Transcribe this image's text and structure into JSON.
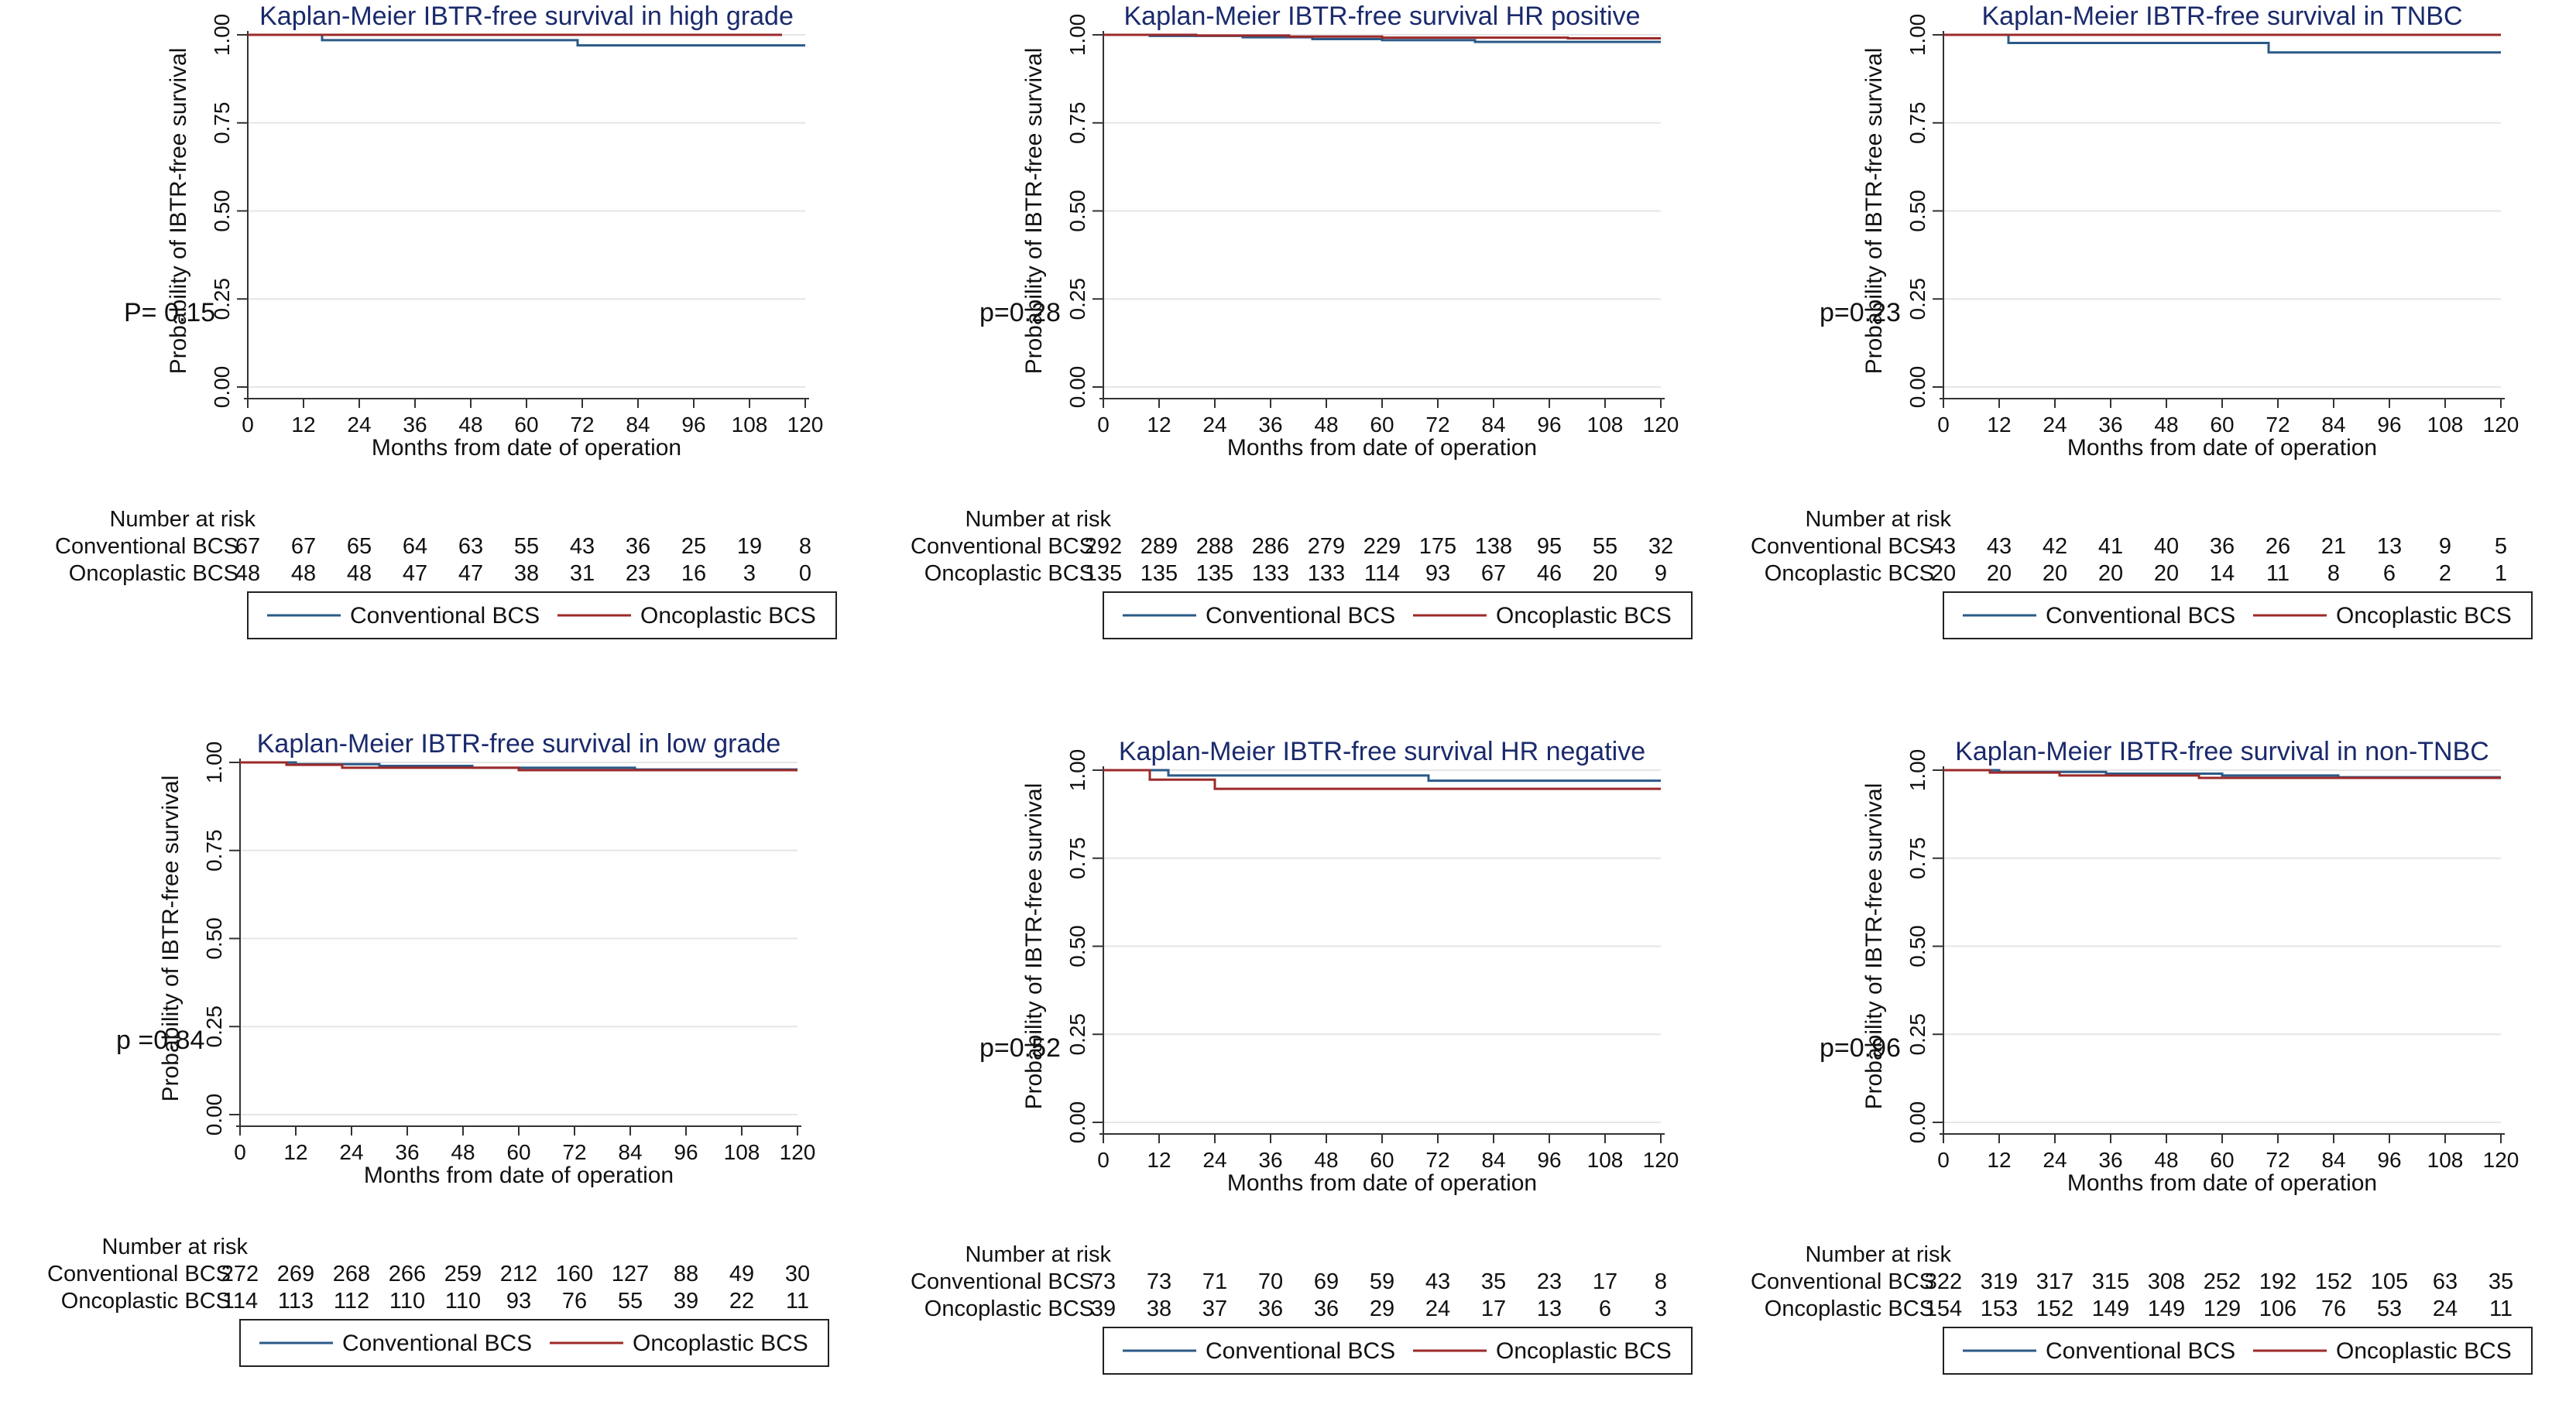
{
  "colors": {
    "conventional": "#2b5a87",
    "oncoplastic": "#9c2a2a",
    "grid": "#e6e6e6",
    "axis": "#333333",
    "title": "#1a2a6c"
  },
  "common": {
    "ylabel": "Probability of IBTR-free survival",
    "xlabel": "Months from date of operation",
    "risk_header": "Number at risk",
    "legend_conventional": "Conventional BCS",
    "legend_oncoplastic": "Oncoplastic BCS",
    "xticks": [
      "0",
      "12",
      "24",
      "36",
      "48",
      "60",
      "72",
      "84",
      "96",
      "108",
      "120"
    ],
    "yticks": [
      "0.00",
      "0.25",
      "0.50",
      "0.75",
      "1.00"
    ]
  },
  "chart_data": [
    {
      "type": "line",
      "title": "Kaplan-Meier IBTR-free survival in high grade",
      "xlabel": "Months from date of operation",
      "ylabel": "Probability of IBTR-free survival",
      "xlim": [
        0,
        120
      ],
      "ylim": [
        0,
        1
      ],
      "p_value": "P= 0.15",
      "series": [
        {
          "name": "Conventional BCS",
          "x": [
            0,
            16,
            71,
            120
          ],
          "y": [
            1.0,
            0.985,
            0.97,
            0.97
          ]
        },
        {
          "name": "Oncoplastic BCS",
          "x": [
            0,
            115
          ],
          "y": [
            1.0,
            1.0
          ]
        }
      ],
      "risk_times": [
        0,
        12,
        24,
        36,
        48,
        60,
        72,
        84,
        96,
        108,
        120
      ],
      "risk": {
        "conventional": [
          67,
          67,
          65,
          64,
          63,
          55,
          43,
          36,
          25,
          19,
          8
        ],
        "oncoplastic": [
          48,
          48,
          48,
          47,
          47,
          38,
          31,
          23,
          16,
          3,
          0
        ]
      }
    },
    {
      "type": "line",
      "title": "Kaplan-Meier IBTR-free survival HR positive",
      "xlabel": "Months from date of operation",
      "ylabel": "Probability of IBTR-free survival",
      "xlim": [
        0,
        120
      ],
      "ylim": [
        0,
        1
      ],
      "p_value": "p=0.28",
      "series": [
        {
          "name": "Conventional BCS",
          "x": [
            0,
            10,
            30,
            45,
            60,
            80,
            120
          ],
          "y": [
            1.0,
            0.997,
            0.993,
            0.988,
            0.985,
            0.98,
            0.98
          ]
        },
        {
          "name": "Oncoplastic BCS",
          "x": [
            0,
            20,
            40,
            60,
            100,
            120
          ],
          "y": [
            1.0,
            0.998,
            0.995,
            0.992,
            0.99,
            0.99
          ]
        }
      ],
      "risk_times": [
        0,
        12,
        24,
        36,
        48,
        60,
        72,
        84,
        96,
        108,
        120
      ],
      "risk": {
        "conventional": [
          292,
          289,
          288,
          286,
          279,
          229,
          175,
          138,
          95,
          55,
          32
        ],
        "oncoplastic": [
          135,
          135,
          135,
          133,
          133,
          114,
          93,
          67,
          46,
          20,
          9
        ]
      }
    },
    {
      "type": "line",
      "title": "Kaplan-Meier IBTR-free survival in TNBC",
      "xlabel": "Months from date of operation",
      "ylabel": "Probability of IBTR-free survival",
      "xlim": [
        0,
        120
      ],
      "ylim": [
        0,
        1
      ],
      "p_value": "p=0.23",
      "series": [
        {
          "name": "Conventional BCS",
          "x": [
            0,
            14,
            70,
            120
          ],
          "y": [
            1.0,
            0.977,
            0.95,
            0.95
          ]
        },
        {
          "name": "Oncoplastic BCS",
          "x": [
            0,
            120
          ],
          "y": [
            1.0,
            1.0
          ]
        }
      ],
      "risk_times": [
        0,
        12,
        24,
        36,
        48,
        60,
        72,
        84,
        96,
        108,
        120
      ],
      "risk": {
        "conventional": [
          43,
          43,
          42,
          41,
          40,
          36,
          26,
          21,
          13,
          9,
          5
        ],
        "oncoplastic": [
          20,
          20,
          20,
          20,
          20,
          14,
          11,
          8,
          6,
          2,
          1
        ]
      }
    },
    {
      "type": "line",
      "title": "Kaplan-Meier IBTR-free survival in low grade",
      "xlabel": "Months from date of operation",
      "ylabel": "Probability of IBTR-free survival",
      "xlim": [
        0,
        120
      ],
      "ylim": [
        0,
        1
      ],
      "p_value": "p =0.84",
      "series": [
        {
          "name": "Conventional BCS",
          "x": [
            0,
            12,
            30,
            50,
            85,
            120
          ],
          "y": [
            1.0,
            0.995,
            0.99,
            0.985,
            0.98,
            0.98
          ]
        },
        {
          "name": "Oncoplastic BCS",
          "x": [
            0,
            10,
            22,
            60,
            120
          ],
          "y": [
            1.0,
            0.993,
            0.985,
            0.978,
            0.978
          ]
        }
      ],
      "risk_times": [
        0,
        12,
        24,
        36,
        48,
        60,
        72,
        84,
        96,
        108,
        120
      ],
      "risk": {
        "conventional": [
          272,
          269,
          268,
          266,
          259,
          212,
          160,
          127,
          88,
          49,
          30
        ],
        "oncoplastic": [
          114,
          113,
          112,
          110,
          110,
          93,
          76,
          55,
          39,
          22,
          11
        ]
      }
    },
    {
      "type": "line",
      "title": "Kaplan-Meier IBTR-free survival HR negative",
      "xlabel": "Months from date of operation",
      "ylabel": "Probability of IBTR-free survival",
      "xlim": [
        0,
        120
      ],
      "ylim": [
        0,
        1
      ],
      "p_value": "p=0.52",
      "series": [
        {
          "name": "Conventional BCS",
          "x": [
            0,
            14,
            70,
            120
          ],
          "y": [
            1.0,
            0.985,
            0.97,
            0.97
          ]
        },
        {
          "name": "Oncoplastic BCS",
          "x": [
            0,
            10,
            24,
            120
          ],
          "y": [
            1.0,
            0.973,
            0.947,
            0.947
          ]
        }
      ],
      "risk_times": [
        0,
        12,
        24,
        36,
        48,
        60,
        72,
        84,
        96,
        108,
        120
      ],
      "risk": {
        "conventional": [
          73,
          73,
          71,
          70,
          69,
          59,
          43,
          35,
          23,
          17,
          8
        ],
        "oncoplastic": [
          39,
          38,
          37,
          36,
          36,
          29,
          24,
          17,
          13,
          6,
          3
        ]
      }
    },
    {
      "type": "line",
      "title": "Kaplan-Meier IBTR-free survival in non-TNBC",
      "xlabel": "Months from date of operation",
      "ylabel": "Probability of IBTR-free survival",
      "xlim": [
        0,
        120
      ],
      "ylim": [
        0,
        1
      ],
      "p_value": "p=0.96",
      "series": [
        {
          "name": "Conventional BCS",
          "x": [
            0,
            12,
            35,
            60,
            85,
            120
          ],
          "y": [
            1.0,
            0.995,
            0.99,
            0.985,
            0.98,
            0.98
          ]
        },
        {
          "name": "Oncoplastic BCS",
          "x": [
            0,
            10,
            25,
            55,
            120
          ],
          "y": [
            1.0,
            0.993,
            0.985,
            0.978,
            0.978
          ]
        }
      ],
      "risk_times": [
        0,
        12,
        24,
        36,
        48,
        60,
        72,
        84,
        96,
        108,
        120
      ],
      "risk": {
        "conventional": [
          322,
          319,
          317,
          315,
          308,
          252,
          192,
          152,
          105,
          63,
          35
        ],
        "oncoplastic": [
          154,
          153,
          152,
          149,
          149,
          129,
          106,
          76,
          53,
          24,
          11
        ]
      }
    }
  ]
}
